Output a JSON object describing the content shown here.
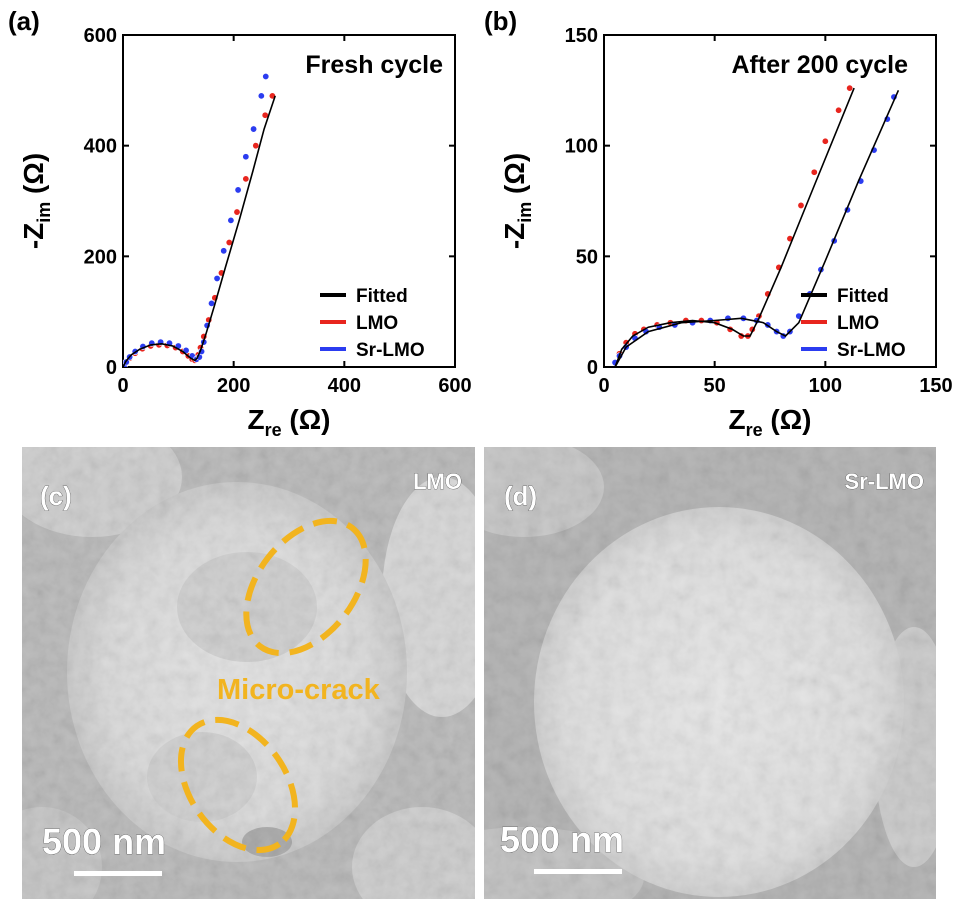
{
  "chart_data": [
    {
      "type": "scatter",
      "panel_label": "(a)",
      "title": "Fresh cycle",
      "xlabel": {
        "main": "Z",
        "sub": "re",
        "unit": " (Ω)"
      },
      "ylabel": {
        "main": "-Z",
        "sub": "im",
        "unit": " (Ω)"
      },
      "xlim": [
        0,
        600
      ],
      "ylim": [
        0,
        600
      ],
      "xticks": [
        0,
        200,
        400,
        600
      ],
      "yticks": [
        0,
        200,
        400,
        600
      ],
      "legend_placement": "bottom-right",
      "legend": [
        "Fitted",
        "LMO",
        "Sr-LMO"
      ],
      "series": [
        {
          "name": "LMO",
          "color": "#e8251e",
          "x": [
            2,
            6,
            12,
            22,
            35,
            50,
            65,
            80,
            95,
            108,
            118,
            125,
            130,
            133,
            136,
            140,
            146,
            155,
            166,
            178,
            192,
            206,
            222,
            240,
            257,
            270
          ],
          "y": [
            2,
            8,
            16,
            25,
            33,
            38,
            40,
            39,
            35,
            28,
            20,
            14,
            12,
            15,
            22,
            35,
            55,
            85,
            125,
            170,
            225,
            280,
            340,
            400,
            455,
            490
          ]
        },
        {
          "name": "Sr-LMO",
          "color": "#2b3cf0",
          "x": [
            2,
            6,
            12,
            22,
            36,
            52,
            68,
            84,
            100,
            114,
            125,
            133,
            138,
            142,
            146,
            152,
            160,
            170,
            182,
            195,
            208,
            222,
            236,
            250,
            258
          ],
          "y": [
            2,
            9,
            18,
            28,
            37,
            43,
            45,
            43,
            38,
            30,
            20,
            14,
            18,
            28,
            45,
            75,
            115,
            160,
            210,
            265,
            320,
            380,
            430,
            490,
            525
          ]
        },
        {
          "name": "Fitted",
          "color": "#000000",
          "x": [
            0,
            5,
            15,
            30,
            50,
            70,
            90,
            108,
            122,
            130,
            134,
            140,
            150,
            165,
            185,
            210,
            235,
            255,
            275
          ],
          "y": [
            0,
            10,
            22,
            32,
            40,
            42,
            38,
            28,
            16,
            12,
            16,
            30,
            60,
            110,
            180,
            265,
            355,
            430,
            490
          ]
        }
      ]
    },
    {
      "type": "scatter",
      "panel_label": "(b)",
      "title": "After 200 cycle",
      "xlabel": {
        "main": "Z",
        "sub": "re",
        "unit": " (Ω)"
      },
      "ylabel": {
        "main": "-Z",
        "sub": "im",
        "unit": " (Ω)"
      },
      "xlim": [
        0,
        150
      ],
      "ylim": [
        0,
        150
      ],
      "xticks": [
        0,
        50,
        100,
        150
      ],
      "yticks": [
        0,
        50,
        100,
        150
      ],
      "legend_placement": "bottom-right",
      "legend": [
        "Fitted",
        "LMO",
        "Sr-LMO"
      ],
      "series": [
        {
          "name": "LMO",
          "color": "#e8251e",
          "x": [
            5,
            7,
            10,
            14,
            18,
            24,
            30,
            37,
            44,
            51,
            57,
            62,
            65,
            67,
            70,
            74,
            79,
            84,
            89,
            95,
            100,
            106,
            111
          ],
          "y": [
            2,
            6,
            11,
            15,
            17,
            19,
            20,
            21,
            21,
            20,
            17,
            14,
            14,
            17,
            23,
            33,
            45,
            58,
            73,
            88,
            102,
            116,
            126
          ]
        },
        {
          "name": "Sr-LMO",
          "color": "#2b3cf0",
          "x": [
            5,
            7,
            10,
            14,
            19,
            25,
            32,
            40,
            48,
            56,
            63,
            69,
            74,
            78,
            81,
            84,
            88,
            93,
            98,
            104,
            110,
            116,
            122,
            128,
            131
          ],
          "y": [
            2,
            5,
            9,
            13,
            16,
            18,
            19,
            20,
            21,
            22,
            22,
            21,
            19,
            16,
            14,
            16,
            23,
            33,
            44,
            57,
            71,
            84,
            98,
            112,
            122
          ]
        },
        {
          "name": "Fitted",
          "color": "#000000",
          "x": [
            5,
            8,
            13,
            20,
            30,
            40,
            50,
            58,
            63,
            66,
            70,
            80,
            95,
            113
          ],
          "y": [
            0,
            8,
            14,
            18,
            20,
            21,
            20,
            17,
            14,
            14,
            22,
            45,
            82,
            126
          ]
        },
        {
          "name": "Fitted",
          "color": "#000000",
          "x": [
            5,
            10,
            20,
            35,
            50,
            62,
            72,
            78,
            82,
            88,
            100,
            115,
            133
          ],
          "y": [
            0,
            9,
            16,
            20,
            21,
            22,
            20,
            16,
            14,
            20,
            48,
            84,
            125
          ]
        }
      ]
    }
  ],
  "sem_panels": [
    {
      "label": "(c)",
      "sample": "LMO",
      "annotation": "Micro-crack",
      "scale_bar": "500 nm",
      "annotation_color": "#f2b41f"
    },
    {
      "label": "(d)",
      "sample": "Sr-LMO",
      "scale_bar": "500 nm"
    }
  ]
}
